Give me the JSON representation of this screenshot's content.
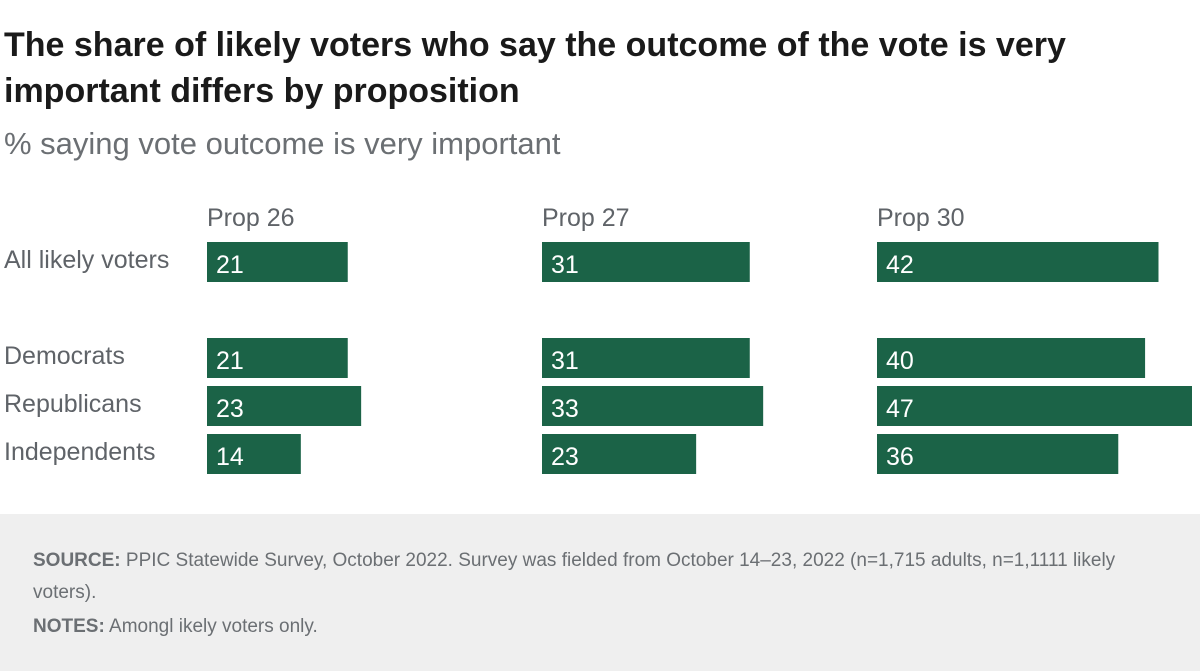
{
  "title": "The share of likely voters who say the outcome of the vote is very important differs by proposition",
  "subtitle": "% saying vote outcome is very important",
  "bar_color": "#1b6347",
  "label_color": "#ffffff",
  "chart_data": {
    "type": "bar",
    "orientation": "horizontal",
    "categories": [
      "All likely voters",
      "Democrats",
      "Republicans",
      "Independents"
    ],
    "series": [
      {
        "name": "Prop 26",
        "values": [
          21,
          21,
          23,
          14
        ]
      },
      {
        "name": "Prop 27",
        "values": [
          31,
          31,
          33,
          23
        ]
      },
      {
        "name": "Prop 30",
        "values": [
          42,
          40,
          47,
          36
        ]
      }
    ],
    "xlim": [
      0,
      47
    ],
    "grid": false,
    "legend": "none"
  },
  "footer": {
    "source_label": "SOURCE:",
    "source_text": "PPIC Statewide Survey, October 2022. Survey was fielded from October 14–23, 2022 (n=1,715 adults, n=1,1111 likely voters).",
    "notes_label": "NOTES:",
    "notes_text": "Amongl ikely voters only."
  }
}
